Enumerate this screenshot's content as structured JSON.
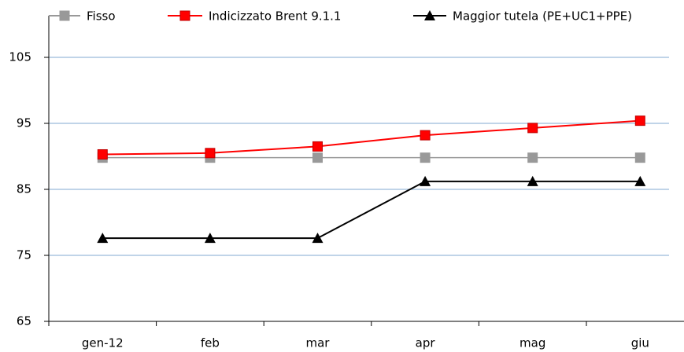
{
  "chart_data": {
    "type": "line",
    "categories": [
      "gen-12",
      "feb",
      "mar",
      "apr",
      "mag",
      "giu"
    ],
    "series": [
      {
        "name": "Fisso",
        "color": "#999999",
        "marker": "square",
        "values": [
          89.8,
          89.8,
          89.8,
          89.8,
          89.8,
          89.8
        ]
      },
      {
        "name": "Indicizzato Brent 9.1.1",
        "color": "#ff0000",
        "marker": "square",
        "values": [
          90.3,
          90.5,
          91.5,
          93.2,
          94.3,
          95.4
        ]
      },
      {
        "name": "Maggior tutela (PE+UC1+PPE)",
        "color": "#000000",
        "marker": "triangle",
        "values": [
          77.6,
          77.6,
          77.6,
          86.2,
          86.2,
          86.2
        ]
      }
    ],
    "ylim": [
      65,
      105
    ],
    "yticks": [
      65,
      75,
      85,
      95,
      105
    ],
    "grid": true,
    "grid_color": "#9bbbd9",
    "legend": "top"
  }
}
